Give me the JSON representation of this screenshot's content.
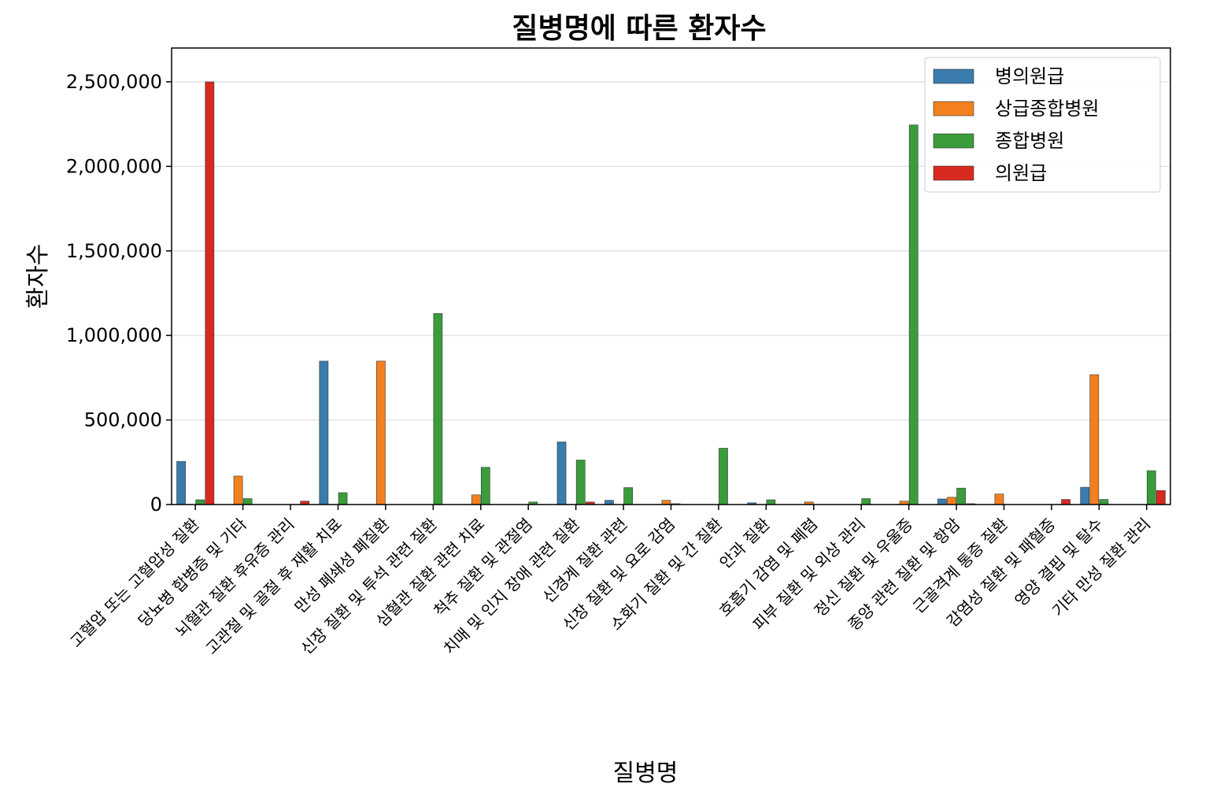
{
  "chart_data": {
    "type": "bar",
    "title": "질병명에 따른 환자수",
    "xlabel": "질병명",
    "ylabel": "환자수",
    "ylim": [
      0,
      2700000
    ],
    "yticks": [
      0,
      500000,
      1000000,
      1500000,
      2000000,
      2500000
    ],
    "ytick_labels": [
      "0",
      "500,000",
      "1,000,000",
      "1,500,000",
      "2,000,000",
      "2,500,000"
    ],
    "grid": "horizontal",
    "legend_position": "top-right",
    "categories": [
      "고혈압 또는 고혈압성 질환",
      "당뇨병 합병증 및 기타",
      "뇌혈관 질환 후유증 관리",
      "고관절 및 골절 후 재활 치료",
      "만성 폐쇄성 폐질환",
      "신장 질환 및 투석 관련 질환",
      "심혈관 질환 관련 치료",
      "척추 질환 및 관절염",
      "치매 및 인지 장애 관련 질환",
      "신경계 질환 관련",
      "신장 질환 및 요로 감염",
      "소화기 질환 및 간 질환",
      "안과 질환",
      "호흡기 감염 및 폐렴",
      "피부 질환 및 외상 관리",
      "정신 질환 및 우울증",
      "종양 관련 질환 및 항암",
      "근골격계 통증 질환",
      "감염성 질환 및 패혈증",
      "영양 결핍 및 탈수",
      "기타 만성 질환 관리"
    ],
    "series": [
      {
        "name": "병의원급",
        "color": "#3a7cad",
        "values": [
          255000,
          0,
          0,
          848000,
          0,
          0,
          0,
          0,
          370000,
          25000,
          0,
          0,
          10000,
          0,
          0,
          0,
          33000,
          0,
          0,
          102000,
          0
        ]
      },
      {
        "name": "상급종합병원",
        "color": "#f2801e",
        "values": [
          0,
          168000,
          0,
          0,
          848000,
          0,
          57000,
          0,
          0,
          0,
          25000,
          0,
          0,
          15000,
          0,
          20000,
          43000,
          62000,
          0,
          768000,
          0
        ]
      },
      {
        "name": "종합병원",
        "color": "#3b9c3b",
        "values": [
          28000,
          35000,
          0,
          70000,
          0,
          1130000,
          220000,
          15000,
          263000,
          100000,
          5000,
          333000,
          28000,
          0,
          35000,
          2245000,
          97000,
          0,
          0,
          30000,
          200000
        ]
      },
      {
        "name": "의원급",
        "color": "#d8291f",
        "values": [
          2500000,
          0,
          20000,
          0,
          0,
          0,
          0,
          0,
          15000,
          0,
          0,
          0,
          0,
          0,
          0,
          0,
          5000,
          0,
          30000,
          0,
          83000
        ]
      }
    ]
  }
}
